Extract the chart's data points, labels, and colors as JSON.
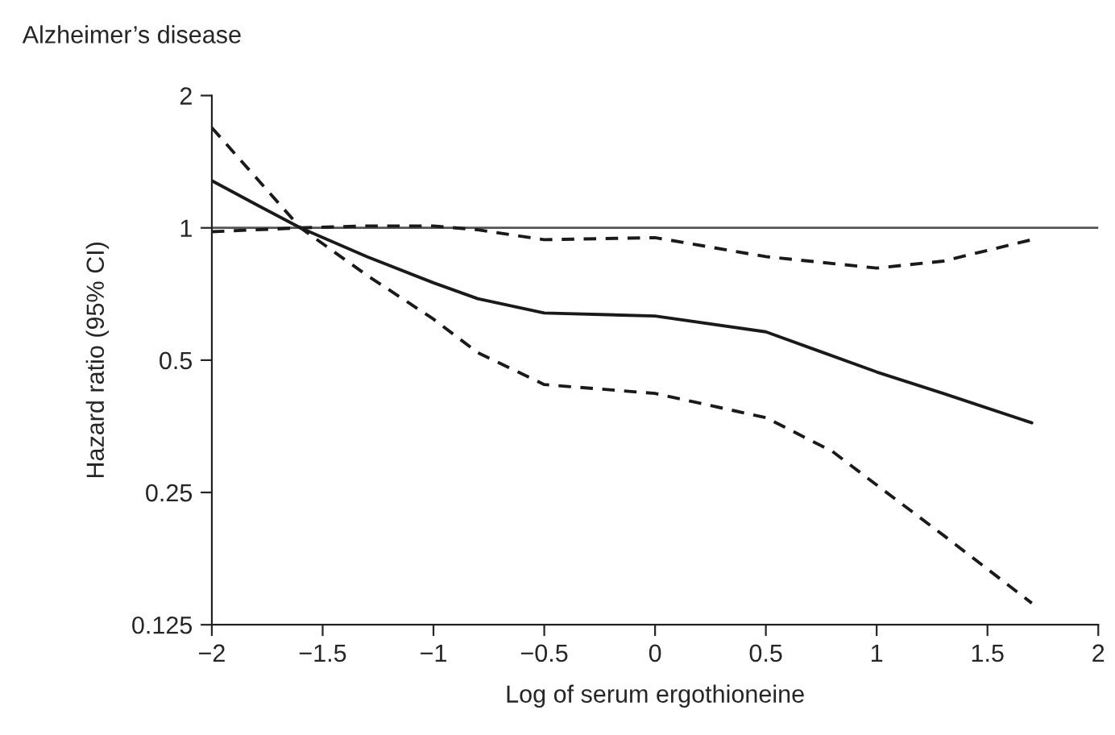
{
  "chart_data": {
    "type": "line",
    "title": "Alzheimer’s disease",
    "xlabel": "Log of serum ergothioneine",
    "ylabel": "Hazard ratio (95% CI)",
    "log": "y",
    "xlim": [
      -2,
      2
    ],
    "ylim": [
      0.125,
      2
    ],
    "xticks": [
      {
        "value": -2,
        "label": "−2"
      },
      {
        "value": -1.5,
        "label": "−1.5"
      },
      {
        "value": -1,
        "label": "−1"
      },
      {
        "value": -0.5,
        "label": "−0.5"
      },
      0,
      0.5,
      1,
      1.5,
      2
    ],
    "yticks": [
      0.125,
      0.25,
      0.5,
      1,
      2
    ],
    "grid": false,
    "legend": false,
    "marker": "none",
    "ref_lines": [
      {
        "axis": "y",
        "value": 1,
        "color": "#555555",
        "line_style": "solid"
      }
    ],
    "series": [
      {
        "color": "#1a1a1a",
        "line_style": "solid",
        "x": [
          -2,
          -1.8,
          -1.6,
          -1.3,
          -1,
          -0.8,
          -0.5,
          0,
          0.5,
          1,
          1.3,
          1.7
        ],
        "values": [
          1.28,
          1.13,
          1.0,
          0.86,
          0.75,
          0.69,
          0.64,
          0.63,
          0.58,
          0.47,
          0.42,
          0.36
        ]
      },
      {
        "color": "#1a1a1a",
        "line_style": "dashed",
        "x": [
          -2,
          -1.8,
          -1.6,
          -1.3,
          -1,
          -0.8,
          -0.5,
          0,
          0.5,
          1,
          1.3,
          1.7
        ],
        "values": [
          0.98,
          0.99,
          1.0,
          1.01,
          1.01,
          0.99,
          0.94,
          0.95,
          0.86,
          0.81,
          0.84,
          0.94
        ]
      },
      {
        "color": "#1a1a1a",
        "line_style": "dashed",
        "x": [
          -2,
          -1.8,
          -1.6,
          -1.3,
          -1,
          -0.8,
          -0.5,
          0,
          0.5,
          0.8,
          1,
          1.3,
          1.7
        ],
        "values": [
          1.69,
          1.3,
          1.0,
          0.78,
          0.62,
          0.52,
          0.44,
          0.42,
          0.37,
          0.31,
          0.26,
          0.2,
          0.14
        ]
      }
    ]
  }
}
